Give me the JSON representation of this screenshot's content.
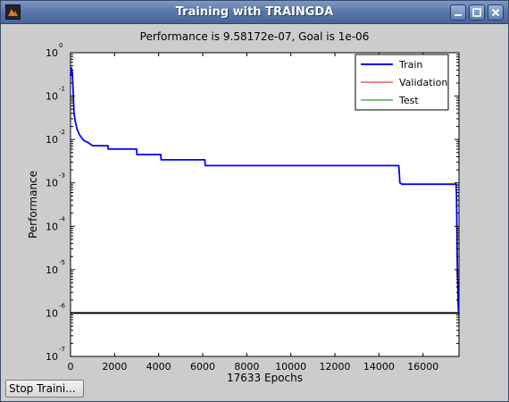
{
  "window": {
    "title": "Training with TRAINGDA",
    "buttons": [
      "minimize",
      "maximize",
      "close"
    ]
  },
  "stop_button": {
    "label": "Stop Traini..."
  },
  "chart_data": {
    "type": "line",
    "title": "Performance is 9.58172e-07, Goal is 1e-06",
    "xlabel": "17633 Epochs",
    "ylabel": "Performance",
    "y_scale": "log",
    "xlim": [
      0,
      17633
    ],
    "ylim": [
      1e-07,
      1
    ],
    "x_ticks": [
      0,
      2000,
      4000,
      6000,
      8000,
      10000,
      12000,
      14000,
      16000
    ],
    "y_ticks": [
      1e-07,
      1e-06,
      1e-05,
      0.0001,
      0.001,
      0.01,
      0.1,
      1
    ],
    "y_tick_labels": [
      {
        "base": "10",
        "exp": "-7"
      },
      {
        "base": "10",
        "exp": "-6"
      },
      {
        "base": "10",
        "exp": "-5"
      },
      {
        "base": "10",
        "exp": "-4"
      },
      {
        "base": "10",
        "exp": "-3"
      },
      {
        "base": "10",
        "exp": "-2"
      },
      {
        "base": "10",
        "exp": "-1"
      },
      {
        "base": "10",
        "exp": "0"
      }
    ],
    "legend_position": "top-right",
    "grid": false,
    "series": [
      {
        "name": "Train",
        "color": "#0000ff",
        "points": [
          [
            0,
            0.3
          ],
          [
            30,
            0.45
          ],
          [
            80,
            0.35
          ],
          [
            120,
            0.12
          ],
          [
            160,
            0.04
          ],
          [
            220,
            0.025
          ],
          [
            300,
            0.017
          ],
          [
            400,
            0.013
          ],
          [
            500,
            0.011
          ],
          [
            600,
            0.0095
          ],
          [
            700,
            0.009
          ],
          [
            800,
            0.0085
          ],
          [
            900,
            0.0078
          ],
          [
            1000,
            0.0072
          ],
          [
            1200,
            0.0072
          ],
          [
            1700,
            0.0072
          ],
          [
            1710,
            0.006
          ],
          [
            3000,
            0.006
          ],
          [
            3010,
            0.0045
          ],
          [
            4100,
            0.0045
          ],
          [
            4110,
            0.0034
          ],
          [
            6100,
            0.0034
          ],
          [
            6110,
            0.0025
          ],
          [
            14900,
            0.0025
          ],
          [
            14950,
            0.001
          ],
          [
            15050,
            0.00093
          ],
          [
            17500,
            0.00093
          ],
          [
            17520,
            0.00055
          ],
          [
            17560,
            1e-05
          ],
          [
            17600,
            1.2e-06
          ],
          [
            17633,
            9.58172e-07
          ]
        ]
      },
      {
        "name": "Validation",
        "color": "#ff0000",
        "points": []
      },
      {
        "name": "Test",
        "color": "#008000",
        "points": []
      },
      {
        "name": "Goal",
        "color": "#000000",
        "points": [
          [
            0,
            1e-06
          ],
          [
            17633,
            1e-06
          ]
        ]
      }
    ]
  }
}
